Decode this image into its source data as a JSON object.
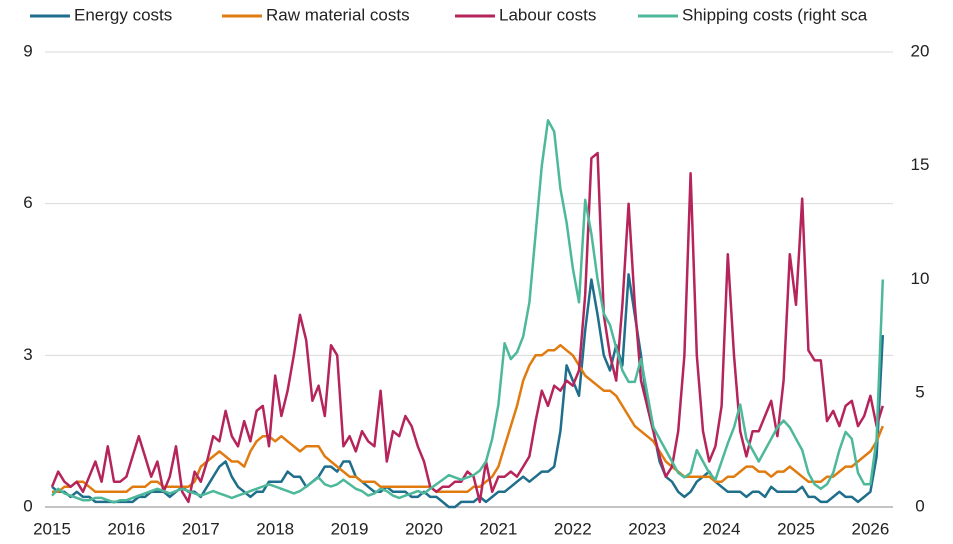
{
  "chart_data": {
    "type": "line",
    "categories": [
      "2015",
      null,
      null,
      null,
      null,
      null,
      null,
      null,
      null,
      null,
      null,
      null,
      "2016",
      null,
      null,
      null,
      null,
      null,
      null,
      null,
      null,
      null,
      null,
      null,
      "2017",
      null,
      null,
      null,
      null,
      null,
      null,
      null,
      null,
      null,
      null,
      null,
      "2018",
      null,
      null,
      null,
      null,
      null,
      null,
      null,
      null,
      null,
      null,
      null,
      "2019",
      null,
      null,
      null,
      null,
      null,
      null,
      null,
      null,
      null,
      null,
      null,
      "2020",
      null,
      null,
      null,
      null,
      null,
      null,
      null,
      null,
      null,
      null,
      null,
      "2021",
      null,
      null,
      null,
      null,
      null,
      null,
      null,
      null,
      null,
      null,
      null,
      "2022",
      null,
      null,
      null,
      null,
      null,
      null,
      null,
      null,
      null,
      null,
      null,
      "2023",
      null,
      null,
      null,
      null,
      null,
      null,
      null,
      null,
      null,
      null,
      null,
      "2024",
      null,
      null,
      null,
      null,
      null,
      null,
      null,
      null,
      null,
      null,
      null,
      "2025",
      null,
      null,
      null,
      null,
      null,
      null,
      null,
      null,
      null,
      null,
      null,
      "2026",
      null,
      null
    ],
    "series": [
      {
        "name": "Energy costs",
        "color": "#1f6e8c",
        "values": [
          0.4,
          0.3,
          0.3,
          0.2,
          0.3,
          0.2,
          0.2,
          0.1,
          0.1,
          0.1,
          0.1,
          0.1,
          0.1,
          0.1,
          0.2,
          0.2,
          0.3,
          0.3,
          0.3,
          0.2,
          0.3,
          0.4,
          0.3,
          0.3,
          0.2,
          0.4,
          0.6,
          0.8,
          0.9,
          0.6,
          0.4,
          0.3,
          0.2,
          0.3,
          0.3,
          0.5,
          0.5,
          0.5,
          0.7,
          0.6,
          0.6,
          0.4,
          0.5,
          0.6,
          0.8,
          0.8,
          0.7,
          0.9,
          0.9,
          0.6,
          0.5,
          0.4,
          0.3,
          0.3,
          0.4,
          0.3,
          0.3,
          0.3,
          0.2,
          0.2,
          0.3,
          0.2,
          0.2,
          0.1,
          0.0,
          0.0,
          0.1,
          0.1,
          0.1,
          0.2,
          0.1,
          0.2,
          0.3,
          0.3,
          0.4,
          0.5,
          0.6,
          0.5,
          0.6,
          0.7,
          0.7,
          0.8,
          1.5,
          2.8,
          2.5,
          2.2,
          3.5,
          4.5,
          3.8,
          3.0,
          2.7,
          3.2,
          2.8,
          4.6,
          3.8,
          3.0,
          2.0,
          1.5,
          0.9,
          0.6,
          0.5,
          0.3,
          0.2,
          0.3,
          0.5,
          0.6,
          0.7,
          0.5,
          0.4,
          0.3,
          0.3,
          0.3,
          0.2,
          0.3,
          0.3,
          0.2,
          0.4,
          0.3,
          0.3,
          0.3,
          0.3,
          0.4,
          0.2,
          0.2,
          0.1,
          0.1,
          0.2,
          0.3,
          0.2,
          0.2,
          0.1,
          0.2,
          0.3,
          1.0,
          3.4
        ]
      },
      {
        "name": "Raw material costs",
        "color": "#e07b10",
        "values": [
          0.3,
          0.3,
          0.4,
          0.4,
          0.5,
          0.5,
          0.4,
          0.3,
          0.3,
          0.3,
          0.3,
          0.3,
          0.3,
          0.4,
          0.4,
          0.4,
          0.5,
          0.5,
          0.4,
          0.4,
          0.4,
          0.4,
          0.4,
          0.5,
          0.8,
          0.9,
          1.0,
          1.1,
          1.0,
          0.9,
          0.9,
          0.8,
          1.1,
          1.3,
          1.4,
          1.4,
          1.3,
          1.4,
          1.3,
          1.2,
          1.1,
          1.2,
          1.2,
          1.2,
          1.0,
          0.9,
          0.8,
          0.7,
          0.6,
          0.6,
          0.5,
          0.5,
          0.5,
          0.4,
          0.4,
          0.4,
          0.4,
          0.4,
          0.4,
          0.4,
          0.4,
          0.4,
          0.3,
          0.3,
          0.3,
          0.3,
          0.3,
          0.3,
          0.4,
          0.4,
          0.5,
          0.6,
          0.8,
          1.2,
          1.6,
          2.0,
          2.5,
          2.8,
          3.0,
          3.0,
          3.1,
          3.1,
          3.2,
          3.1,
          3.0,
          2.8,
          2.6,
          2.5,
          2.4,
          2.3,
          2.3,
          2.2,
          2.0,
          1.8,
          1.6,
          1.5,
          1.4,
          1.3,
          1.1,
          0.9,
          0.8,
          0.7,
          0.6,
          0.6,
          0.6,
          0.6,
          0.6,
          0.5,
          0.5,
          0.6,
          0.6,
          0.7,
          0.8,
          0.8,
          0.7,
          0.7,
          0.6,
          0.7,
          0.7,
          0.8,
          0.7,
          0.6,
          0.5,
          0.5,
          0.5,
          0.6,
          0.6,
          0.7,
          0.8,
          0.8,
          0.9,
          1.0,
          1.1,
          1.3,
          1.6
        ]
      },
      {
        "name": "Labour costs",
        "color": "#b5245a",
        "values": [
          0.4,
          0.7,
          0.5,
          0.4,
          0.5,
          0.3,
          0.6,
          0.9,
          0.5,
          1.2,
          0.5,
          0.5,
          0.6,
          1.0,
          1.4,
          1.0,
          0.6,
          0.9,
          0.3,
          0.6,
          1.2,
          0.3,
          0.1,
          0.7,
          0.5,
          0.9,
          1.4,
          1.3,
          1.9,
          1.4,
          1.2,
          1.7,
          1.3,
          1.9,
          2.0,
          1.2,
          2.6,
          1.8,
          2.3,
          3.0,
          3.8,
          3.3,
          2.1,
          2.4,
          1.8,
          3.2,
          3.0,
          1.2,
          1.4,
          1.1,
          1.5,
          1.3,
          1.2,
          2.3,
          0.9,
          1.5,
          1.4,
          1.8,
          1.6,
          1.2,
          0.9,
          0.4,
          0.3,
          0.4,
          0.4,
          0.5,
          0.5,
          0.7,
          0.6,
          0.1,
          0.9,
          0.3,
          0.6,
          0.6,
          0.7,
          0.6,
          0.8,
          1.0,
          1.7,
          2.3,
          2.0,
          2.4,
          2.3,
          2.5,
          2.4,
          2.7,
          4.2,
          6.9,
          7.0,
          3.8,
          3.0,
          2.5,
          4.0,
          6.0,
          4.0,
          2.5,
          2.0,
          1.5,
          1.0,
          0.6,
          0.8,
          1.5,
          3.0,
          6.6,
          3.0,
          1.5,
          0.9,
          1.2,
          2.0,
          5.0,
          3.0,
          1.5,
          1.0,
          1.5,
          1.5,
          1.8,
          2.1,
          1.4,
          2.5,
          5.0,
          4.0,
          6.1,
          3.1,
          2.9,
          2.9,
          1.7,
          1.9,
          1.6,
          2.0,
          2.1,
          1.6,
          1.8,
          2.2,
          1.6,
          2.0
        ]
      },
      {
        "name": "Shipping costs (right sca",
        "color": "#4db89a",
        "axis": "y2",
        "values": [
          0.5,
          0.8,
          0.6,
          0.5,
          0.4,
          0.3,
          0.3,
          0.4,
          0.4,
          0.3,
          0.2,
          0.3,
          0.3,
          0.4,
          0.5,
          0.6,
          0.7,
          0.8,
          0.7,
          0.6,
          0.7,
          0.8,
          0.7,
          0.6,
          0.5,
          0.6,
          0.7,
          0.6,
          0.5,
          0.4,
          0.5,
          0.6,
          0.7,
          0.8,
          0.9,
          1.0,
          0.9,
          0.8,
          0.7,
          0.6,
          0.7,
          0.9,
          1.1,
          1.3,
          1.0,
          0.9,
          1.0,
          1.2,
          1.0,
          0.8,
          0.7,
          0.5,
          0.6,
          0.8,
          0.7,
          0.5,
          0.4,
          0.5,
          0.6,
          0.7,
          0.6,
          0.8,
          1.0,
          1.2,
          1.4,
          1.3,
          1.2,
          1.3,
          1.4,
          1.6,
          2.0,
          3.0,
          4.5,
          7.2,
          6.5,
          6.8,
          7.5,
          9.0,
          12.0,
          15.0,
          17.0,
          16.5,
          14.0,
          12.5,
          10.5,
          9.0,
          13.5,
          12.0,
          10.0,
          8.5,
          8.0,
          7.0,
          6.0,
          5.5,
          5.5,
          6.5,
          5.0,
          3.5,
          3.0,
          2.5,
          2.0,
          1.5,
          1.3,
          1.5,
          2.5,
          2.0,
          1.5,
          1.2,
          2.0,
          2.8,
          3.5,
          4.5,
          3.0,
          2.5,
          2.0,
          2.5,
          3.0,
          3.5,
          3.8,
          3.5,
          3.0,
          2.5,
          1.5,
          1.0,
          0.8,
          1.0,
          1.5,
          2.5,
          3.3,
          3.0,
          1.5,
          1.0,
          1.0,
          3.0,
          10.0
        ]
      }
    ],
    "ylim": [
      0,
      9
    ],
    "yticks": [
      0,
      3,
      6,
      9
    ],
    "y2lim": [
      0,
      20
    ],
    "y2ticks": [
      0,
      5,
      10,
      15,
      20
    ],
    "grid": true,
    "legend": "top"
  }
}
